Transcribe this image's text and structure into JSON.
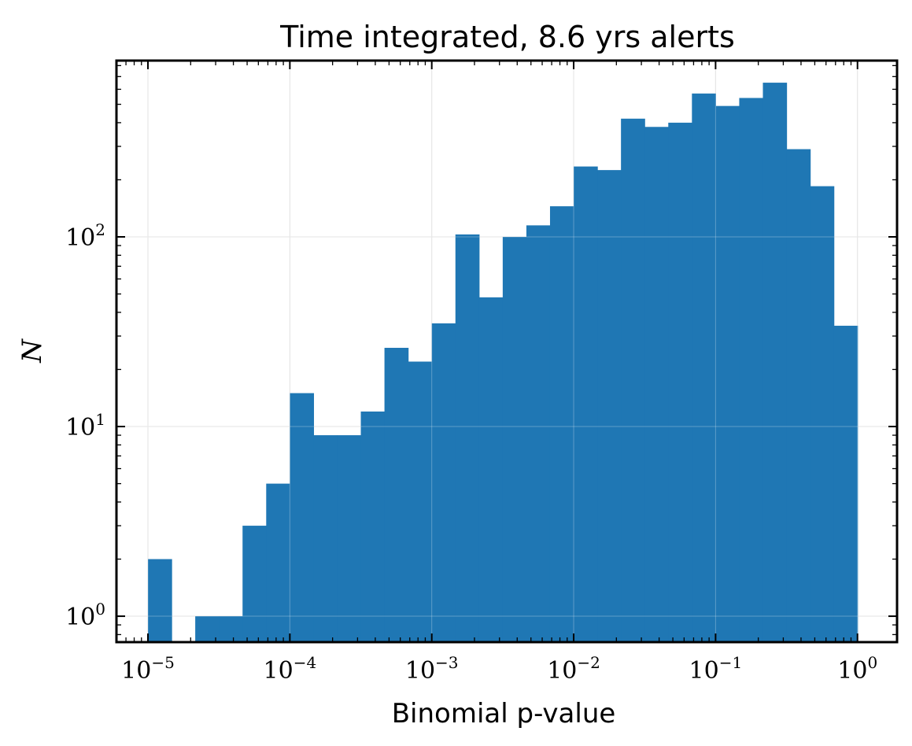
{
  "chart_data": {
    "type": "bar",
    "title": "Time integrated, 8.6 yrs alerts",
    "xlabel": "Binomial p-value",
    "ylabel": "N",
    "x_scale": "log",
    "y_scale": "log",
    "xlim": [
      6e-06,
      1.9
    ],
    "ylim": [
      0.73,
      850
    ],
    "grid": true,
    "bar_color": "#1f77b4",
    "bin_edges_log10": [
      -5.0,
      -4.8333,
      -4.6667,
      -4.5,
      -4.3333,
      -4.1667,
      -4.0,
      -3.8333,
      -3.6667,
      -3.5,
      -3.3333,
      -3.1667,
      -3.0,
      -2.8333,
      -2.6667,
      -2.5,
      -2.3333,
      -2.1667,
      -2.0,
      -1.8333,
      -1.6667,
      -1.5,
      -1.3333,
      -1.1667,
      -1.0,
      -0.8333,
      -0.6667,
      -0.5,
      -0.3333,
      -0.1667,
      0.0
    ],
    "counts": [
      2,
      0,
      1,
      1,
      3,
      5,
      15,
      9,
      9,
      12,
      26,
      22,
      35,
      103,
      48,
      100,
      115,
      145,
      235,
      225,
      420,
      380,
      400,
      570,
      490,
      540,
      650,
      290,
      185,
      34
    ],
    "x_ticks": [
      {
        "exp": -5,
        "base": "10",
        "sup": "−5"
      },
      {
        "exp": -4,
        "base": "10",
        "sup": "−4"
      },
      {
        "exp": -3,
        "base": "10",
        "sup": "−3"
      },
      {
        "exp": -2,
        "base": "10",
        "sup": "−2"
      },
      {
        "exp": -1,
        "base": "10",
        "sup": "−1"
      },
      {
        "exp": 0,
        "base": "10",
        "sup": "0"
      }
    ],
    "y_ticks": [
      {
        "exp": 0,
        "base": "10",
        "sup": "0"
      },
      {
        "exp": 1,
        "base": "10",
        "sup": "1"
      },
      {
        "exp": 2,
        "base": "10",
        "sup": "2"
      }
    ]
  }
}
